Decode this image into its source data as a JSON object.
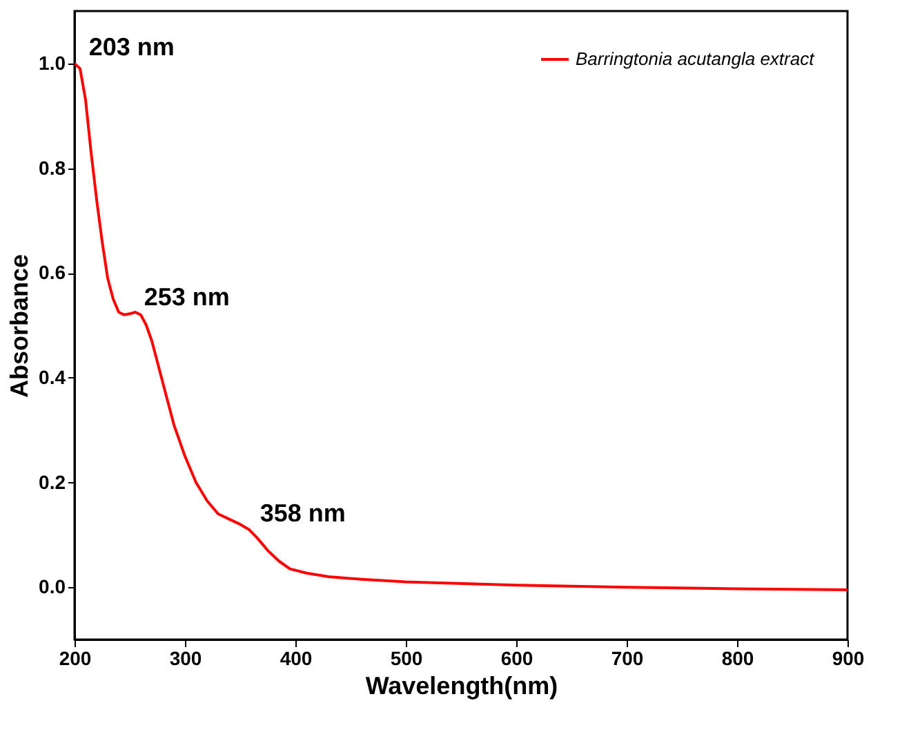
{
  "chart_data": {
    "type": "line",
    "xlabel": "Wavelength(nm)",
    "ylabel": "Absorbance",
    "xlim": [
      200,
      900
    ],
    "xticks": [
      200,
      300,
      400,
      500,
      600,
      700,
      800,
      900
    ],
    "ylim": [
      -0.1,
      1.1
    ],
    "yticks": [
      {
        "value": 0,
        "label": "0.0"
      },
      0.2,
      0.4,
      0.6,
      0.8,
      {
        "value": 1,
        "label": "1.0"
      }
    ],
    "x": [
      200,
      205,
      210,
      215,
      220,
      225,
      230,
      235,
      240,
      245,
      250,
      255,
      260,
      265,
      270,
      275,
      280,
      290,
      300,
      310,
      320,
      330,
      340,
      350,
      358,
      365,
      375,
      385,
      395,
      410,
      430,
      460,
      500,
      600,
      700,
      800,
      900
    ],
    "series": [
      {
        "name": "Barringtonia acutangla extract",
        "color": "#ff0000",
        "values": [
          1.0,
          0.99,
          0.93,
          0.83,
          0.74,
          0.66,
          0.59,
          0.55,
          0.525,
          0.52,
          0.522,
          0.525,
          0.52,
          0.5,
          0.47,
          0.43,
          0.39,
          0.31,
          0.25,
          0.2,
          0.165,
          0.14,
          0.13,
          0.12,
          0.11,
          0.095,
          0.07,
          0.05,
          0.035,
          0.027,
          0.02,
          0.015,
          0.01,
          0.004,
          0.0,
          -0.003,
          -0.005
        ]
      }
    ],
    "annotations": [
      {
        "text": "203 nm",
        "x": 203,
        "y": 1.0
      },
      {
        "text": "253 nm",
        "x": 253,
        "y": 0.523
      },
      {
        "text": "358 nm",
        "x": 358,
        "y": 0.11
      }
    ],
    "legend": "top right",
    "grid": false,
    "marker": "none",
    "line_style": "solid"
  }
}
